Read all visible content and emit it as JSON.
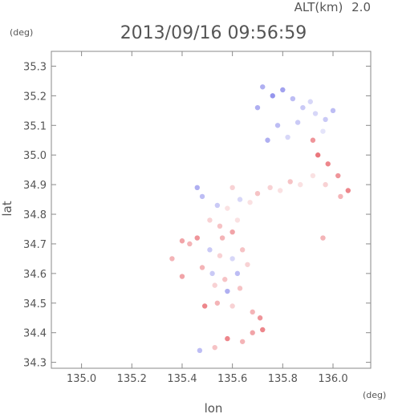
{
  "header": {
    "altitude_label": "ALT(km)",
    "altitude_value": "2.0",
    "timestamp": "2013/09/16 09:56:59"
  },
  "chart_data": {
    "type": "scatter",
    "xlabel": "lon",
    "ylabel": "lat",
    "x_unit": "(deg)",
    "y_unit": "(deg)",
    "xlim": [
      134.88,
      136.15
    ],
    "ylim": [
      34.28,
      35.35
    ],
    "x_ticks": [
      "135.0",
      "135.2",
      "135.4",
      "135.6",
      "135.8",
      "136.0"
    ],
    "y_ticks": [
      "34.3",
      "34.4",
      "34.5",
      "34.6",
      "34.7",
      "34.8",
      "34.9",
      "35.0",
      "35.1",
      "35.2",
      "35.3"
    ],
    "grid": false,
    "colors": {
      "positive": "#e8686e",
      "negative": "#7a7ae8",
      "near_zero": "#f2c9cc"
    },
    "points": [
      {
        "lon": 135.72,
        "lat": 35.23,
        "v": -0.6
      },
      {
        "lon": 135.76,
        "lat": 35.2,
        "v": -0.8
      },
      {
        "lon": 135.8,
        "lat": 35.22,
        "v": -0.7
      },
      {
        "lon": 135.84,
        "lat": 35.19,
        "v": -0.5
      },
      {
        "lon": 135.7,
        "lat": 35.16,
        "v": -0.6
      },
      {
        "lon": 135.88,
        "lat": 35.16,
        "v": -0.4
      },
      {
        "lon": 135.93,
        "lat": 35.14,
        "v": -0.3
      },
      {
        "lon": 135.97,
        "lat": 35.12,
        "v": -0.4
      },
      {
        "lon": 135.91,
        "lat": 35.18,
        "v": -0.3
      },
      {
        "lon": 136.0,
        "lat": 35.15,
        "v": -0.5
      },
      {
        "lon": 135.86,
        "lat": 35.11,
        "v": -0.4
      },
      {
        "lon": 135.78,
        "lat": 35.1,
        "v": -0.5
      },
      {
        "lon": 135.82,
        "lat": 35.06,
        "v": -0.3
      },
      {
        "lon": 135.74,
        "lat": 35.05,
        "v": -0.6
      },
      {
        "lon": 135.96,
        "lat": 35.08,
        "v": -0.2
      },
      {
        "lon": 135.92,
        "lat": 35.05,
        "v": 0.7
      },
      {
        "lon": 135.94,
        "lat": 35.0,
        "v": 0.9
      },
      {
        "lon": 135.98,
        "lat": 34.97,
        "v": 0.8
      },
      {
        "lon": 136.02,
        "lat": 34.93,
        "v": 0.7
      },
      {
        "lon": 136.06,
        "lat": 34.88,
        "v": 0.8
      },
      {
        "lon": 136.03,
        "lat": 34.86,
        "v": 0.5
      },
      {
        "lon": 135.97,
        "lat": 34.9,
        "v": 0.3
      },
      {
        "lon": 135.92,
        "lat": 34.93,
        "v": 0.2
      },
      {
        "lon": 135.87,
        "lat": 34.9,
        "v": 0.2
      },
      {
        "lon": 135.83,
        "lat": 34.91,
        "v": 0.4
      },
      {
        "lon": 135.79,
        "lat": 34.88,
        "v": 0.2
      },
      {
        "lon": 135.75,
        "lat": 34.89,
        "v": 0.3
      },
      {
        "lon": 135.7,
        "lat": 34.87,
        "v": 0.4
      },
      {
        "lon": 135.67,
        "lat": 34.84,
        "v": 0.2
      },
      {
        "lon": 135.63,
        "lat": 34.85,
        "v": -0.3
      },
      {
        "lon": 135.6,
        "lat": 34.89,
        "v": 0.3
      },
      {
        "lon": 135.58,
        "lat": 34.82,
        "v": 0.2
      },
      {
        "lon": 135.54,
        "lat": 34.83,
        "v": -0.4
      },
      {
        "lon": 135.48,
        "lat": 34.86,
        "v": -0.5
      },
      {
        "lon": 135.46,
        "lat": 34.89,
        "v": -0.6
      },
      {
        "lon": 135.51,
        "lat": 34.78,
        "v": 0.3
      },
      {
        "lon": 135.55,
        "lat": 34.76,
        "v": 0.4
      },
      {
        "lon": 135.62,
        "lat": 34.78,
        "v": 0.2
      },
      {
        "lon": 135.6,
        "lat": 34.74,
        "v": 0.6
      },
      {
        "lon": 135.56,
        "lat": 34.72,
        "v": 0.5
      },
      {
        "lon": 135.46,
        "lat": 34.72,
        "v": 0.7
      },
      {
        "lon": 135.43,
        "lat": 34.7,
        "v": 0.5
      },
      {
        "lon": 135.4,
        "lat": 34.71,
        "v": 0.6
      },
      {
        "lon": 135.51,
        "lat": 34.68,
        "v": -0.4
      },
      {
        "lon": 135.55,
        "lat": 34.66,
        "v": 0.3
      },
      {
        "lon": 135.6,
        "lat": 34.65,
        "v": -0.3
      },
      {
        "lon": 135.64,
        "lat": 34.68,
        "v": 0.4
      },
      {
        "lon": 135.48,
        "lat": 34.62,
        "v": 0.5
      },
      {
        "lon": 135.52,
        "lat": 34.6,
        "v": -0.4
      },
      {
        "lon": 135.57,
        "lat": 34.58,
        "v": 0.4
      },
      {
        "lon": 135.62,
        "lat": 34.6,
        "v": -0.5
      },
      {
        "lon": 135.66,
        "lat": 34.63,
        "v": 0.3
      },
      {
        "lon": 135.53,
        "lat": 34.56,
        "v": 0.3
      },
      {
        "lon": 135.58,
        "lat": 34.54,
        "v": -0.6
      },
      {
        "lon": 135.63,
        "lat": 34.55,
        "v": 0.4
      },
      {
        "lon": 135.54,
        "lat": 34.5,
        "v": 0.5
      },
      {
        "lon": 135.6,
        "lat": 34.49,
        "v": 0.3
      },
      {
        "lon": 135.49,
        "lat": 34.49,
        "v": 0.8
      },
      {
        "lon": 135.4,
        "lat": 34.59,
        "v": 0.6
      },
      {
        "lon": 135.68,
        "lat": 34.47,
        "v": 0.5
      },
      {
        "lon": 135.71,
        "lat": 34.45,
        "v": 0.7
      },
      {
        "lon": 135.72,
        "lat": 34.41,
        "v": 0.8
      },
      {
        "lon": 135.68,
        "lat": 34.4,
        "v": 0.6
      },
      {
        "lon": 135.64,
        "lat": 34.37,
        "v": 0.5
      },
      {
        "lon": 135.58,
        "lat": 34.38,
        "v": 0.8
      },
      {
        "lon": 135.53,
        "lat": 34.35,
        "v": 0.4
      },
      {
        "lon": 135.47,
        "lat": 34.34,
        "v": -0.5
      },
      {
        "lon": 135.96,
        "lat": 34.72,
        "v": 0.5
      },
      {
        "lon": 135.36,
        "lat": 34.65,
        "v": 0.5
      }
    ]
  }
}
